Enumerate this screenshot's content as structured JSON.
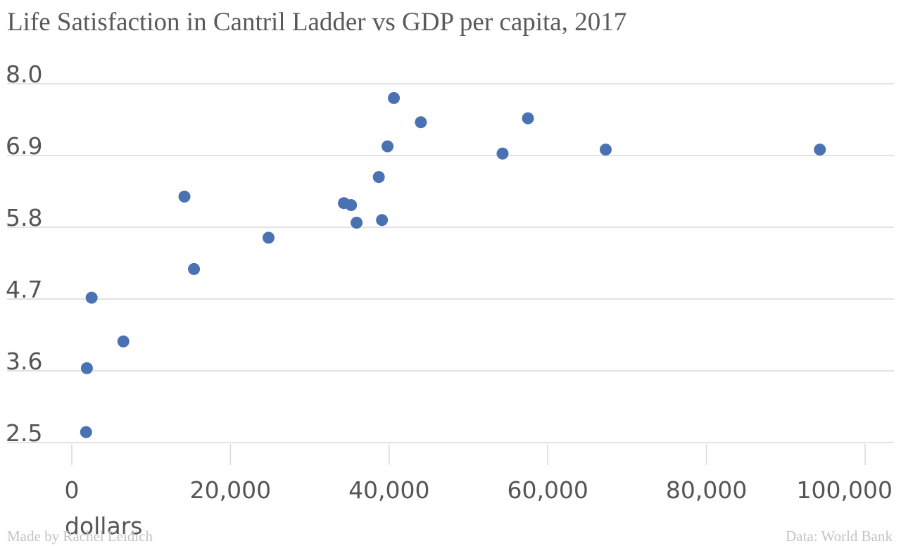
{
  "chart_data": {
    "type": "scatter",
    "title": "Life Satisfaction in Cantril Ladder vs GDP per capita, 2017",
    "xlabel": "dollars",
    "ylabel": "",
    "xlim": [
      0,
      100000
    ],
    "ylim": [
      2.5,
      8.0
    ],
    "x_ticks": [
      0,
      20000,
      40000,
      60000,
      80000,
      100000
    ],
    "x_tick_labels": [
      "0",
      "20,000",
      "40,000",
      "60,000",
      "80,000",
      "100,000"
    ],
    "y_ticks": [
      2.5,
      3.6,
      4.7,
      5.8,
      6.9,
      8.0
    ],
    "y_tick_labels": [
      "2.5",
      "3.6",
      "4.7",
      "5.8",
      "6.9",
      "8.0"
    ],
    "grid": "horizontal",
    "marker_color": "#4a72b2",
    "points": [
      {
        "x": 1800,
        "y": 2.66
      },
      {
        "x": 1900,
        "y": 3.64
      },
      {
        "x": 2500,
        "y": 4.72
      },
      {
        "x": 6500,
        "y": 4.05
      },
      {
        "x": 14200,
        "y": 6.27
      },
      {
        "x": 15400,
        "y": 5.16
      },
      {
        "x": 24800,
        "y": 5.64
      },
      {
        "x": 34300,
        "y": 6.17
      },
      {
        "x": 35200,
        "y": 6.14
      },
      {
        "x": 35900,
        "y": 5.87
      },
      {
        "x": 38700,
        "y": 6.57
      },
      {
        "x": 39100,
        "y": 5.91
      },
      {
        "x": 39800,
        "y": 7.04
      },
      {
        "x": 40600,
        "y": 7.78
      },
      {
        "x": 44000,
        "y": 7.41
      },
      {
        "x": 54300,
        "y": 6.93
      },
      {
        "x": 57500,
        "y": 7.47
      },
      {
        "x": 67300,
        "y": 6.99
      },
      {
        "x": 94300,
        "y": 6.99
      }
    ]
  },
  "footer": {
    "credit": "Made by Rachel Leidich",
    "source": "Data: World Bank"
  }
}
